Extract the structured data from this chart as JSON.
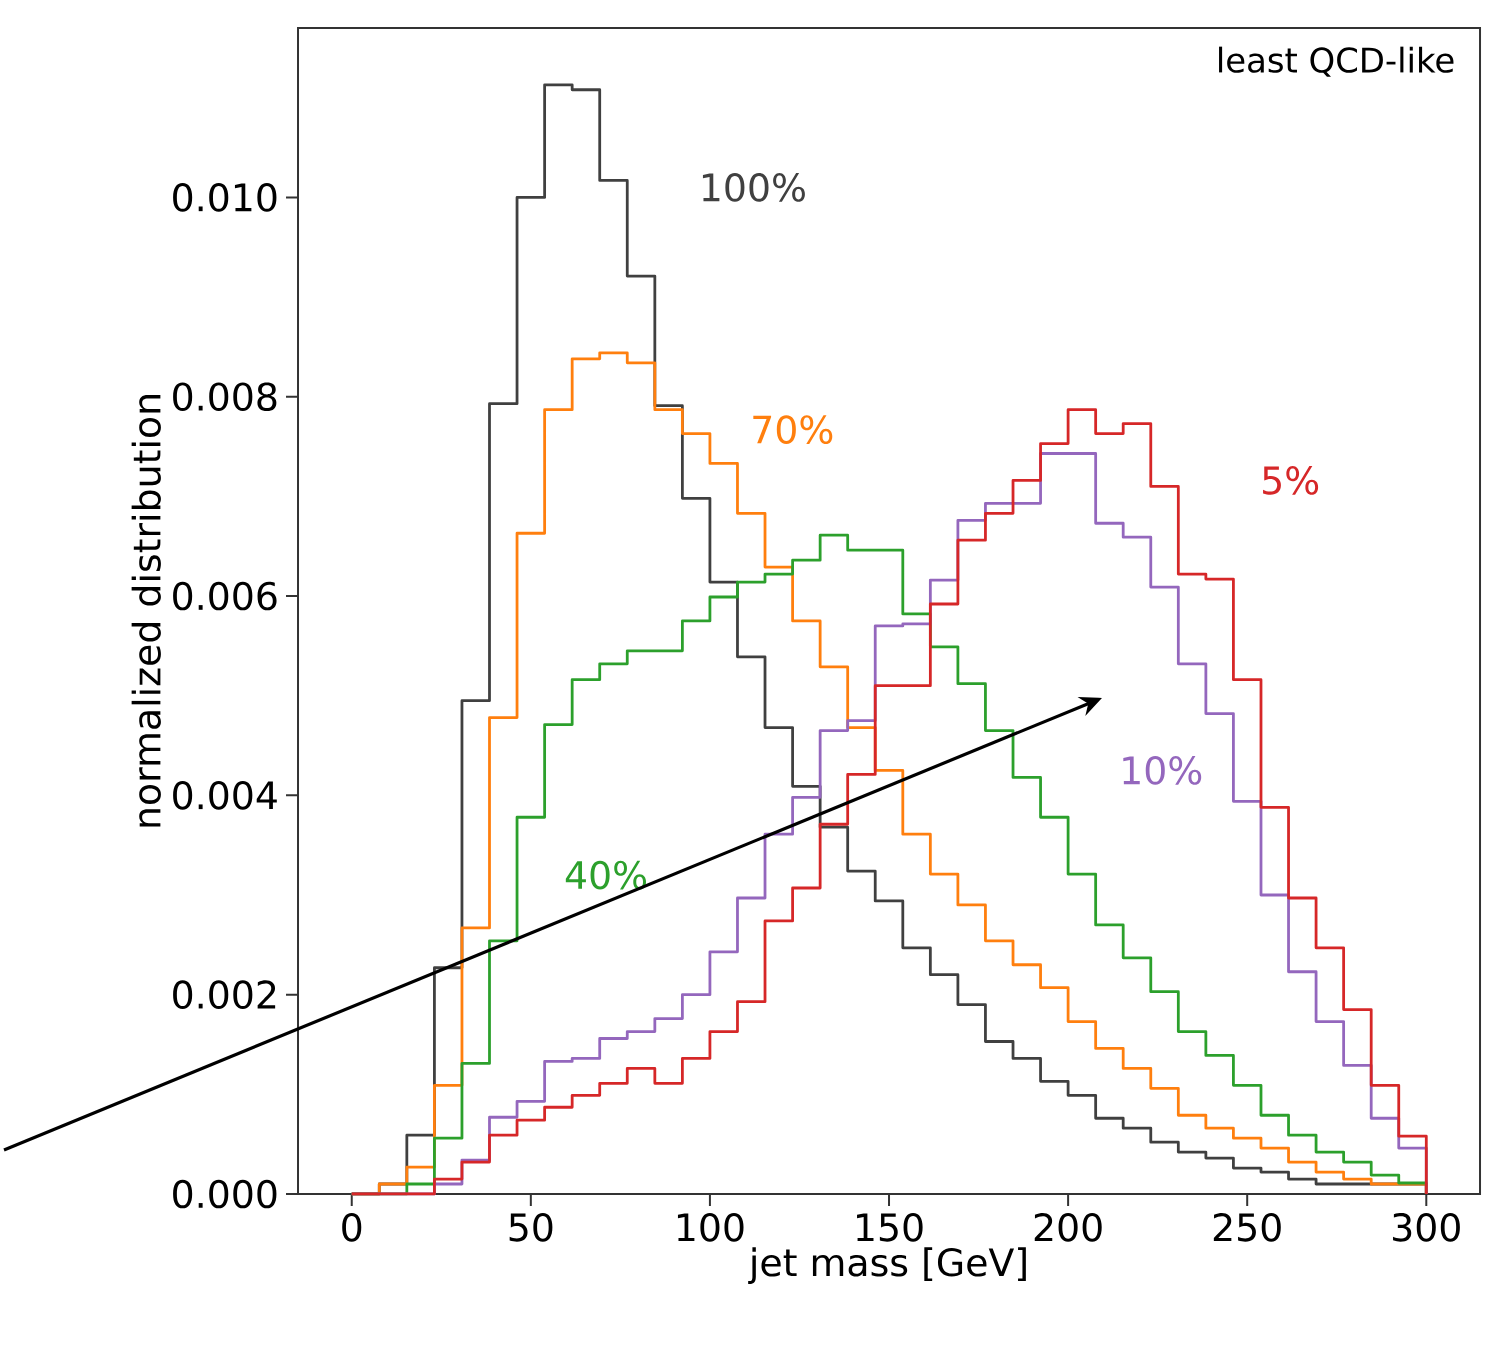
{
  "chart_data": {
    "type": "histogram",
    "xlabel": "jet mass [GeV]",
    "ylabel": "normalized distribution",
    "xlim": [
      -15,
      315
    ],
    "ylim": [
      0,
      0.0117
    ],
    "xticks": [
      0,
      50,
      100,
      150,
      200,
      250,
      300
    ],
    "yticks": [
      {
        "value": 0,
        "label": "0.000"
      },
      {
        "value": 0.002,
        "label": "0.002"
      },
      {
        "value": 0.004,
        "label": "0.004"
      },
      {
        "value": 0.006,
        "label": "0.006"
      },
      {
        "value": 0.008,
        "label": "0.008"
      },
      {
        "value": 0.01,
        "label": "0.010"
      }
    ],
    "grid": false,
    "bins": [
      0,
      7.69,
      15.38,
      23.08,
      30.77,
      38.46,
      46.15,
      53.85,
      61.54,
      69.23,
      76.92,
      84.62,
      92.31,
      100,
      107.69,
      115.38,
      123.08,
      130.77,
      138.46,
      146.15,
      153.85,
      161.54,
      169.23,
      176.92,
      184.62,
      192.31,
      200,
      207.69,
      215.38,
      223.08,
      230.77,
      238.46,
      246.15,
      253.85,
      261.54,
      269.23,
      276.92,
      284.62,
      292.31,
      300
    ],
    "series": [
      {
        "name": "100%",
        "color": "#404040",
        "values": [
          0,
          0.0001,
          0.00059,
          0.00227,
          0.00495,
          0.00793,
          0.01,
          0.01113,
          0.01108,
          0.01017,
          0.00921,
          0.00791,
          0.00698,
          0.00614,
          0.00539,
          0.00468,
          0.00409,
          0.00368,
          0.00324,
          0.00294,
          0.00247,
          0.0022,
          0.0019,
          0.00153,
          0.00136,
          0.00113,
          0.00099,
          0.00076,
          0.00066,
          0.00052,
          0.00042,
          0.00036,
          0.00026,
          0.00022,
          0.00015,
          0.0001,
          0.0001,
          0.0001,
          0.0001
        ]
      },
      {
        "name": "70%",
        "color": "#ff7f0e",
        "values": [
          0,
          0.0001,
          0.00027,
          0.00109,
          0.00267,
          0.00478,
          0.00663,
          0.00787,
          0.00838,
          0.00844,
          0.00834,
          0.00787,
          0.00763,
          0.00733,
          0.00683,
          0.00629,
          0.00575,
          0.00529,
          0.00468,
          0.00425,
          0.00361,
          0.00321,
          0.0029,
          0.00254,
          0.0023,
          0.00207,
          0.00173,
          0.00146,
          0.00126,
          0.00106,
          0.00079,
          0.00066,
          0.00056,
          0.00046,
          0.00032,
          0.00022,
          0.00015,
          0.0001,
          0.0001
        ]
      },
      {
        "name": "40%",
        "color": "#2ca02c",
        "values": [
          0,
          0,
          0.0001,
          0.00056,
          0.00131,
          0.00254,
          0.00378,
          0.00471,
          0.00516,
          0.00532,
          0.00545,
          0.00545,
          0.00575,
          0.00599,
          0.00614,
          0.00622,
          0.00636,
          0.00661,
          0.00646,
          0.00646,
          0.00582,
          0.00549,
          0.00512,
          0.00465,
          0.00418,
          0.00378,
          0.00321,
          0.0027,
          0.00237,
          0.00203,
          0.00163,
          0.00139,
          0.00109,
          0.00079,
          0.00059,
          0.00042,
          0.00032,
          0.00019,
          0.00011
        ]
      },
      {
        "name": "10%",
        "color": "#9467bd",
        "values": [
          0,
          0,
          0,
          0.0001,
          0.00034,
          0.00077,
          0.00093,
          0.00133,
          0.00136,
          0.00156,
          0.00163,
          0.00176,
          0.002,
          0.00243,
          0.00297,
          0.00361,
          0.00398,
          0.00465,
          0.00475,
          0.0057,
          0.00572,
          0.00616,
          0.00676,
          0.00693,
          0.00693,
          0.00743,
          0.00743,
          0.00673,
          0.00659,
          0.00609,
          0.00532,
          0.00482,
          0.00394,
          0.003,
          0.00223,
          0.00173,
          0.00129,
          0.00076,
          0.00046
        ]
      },
      {
        "name": "5%",
        "color": "#d62728",
        "values": [
          0,
          0,
          0,
          0.00015,
          0.00032,
          0.00059,
          0.00074,
          0.00087,
          0.00099,
          0.00111,
          0.00126,
          0.00111,
          0.00136,
          0.00163,
          0.00193,
          0.00274,
          0.00307,
          0.00371,
          0.00421,
          0.0051,
          0.0051,
          0.00592,
          0.00656,
          0.00683,
          0.00716,
          0.00753,
          0.00787,
          0.00763,
          0.00773,
          0.0071,
          0.00622,
          0.00617,
          0.00516,
          0.00388,
          0.00297,
          0.00247,
          0.00185,
          0.00109,
          0.00058
        ]
      }
    ],
    "annotations": [
      "least QCD-like"
    ]
  }
}
